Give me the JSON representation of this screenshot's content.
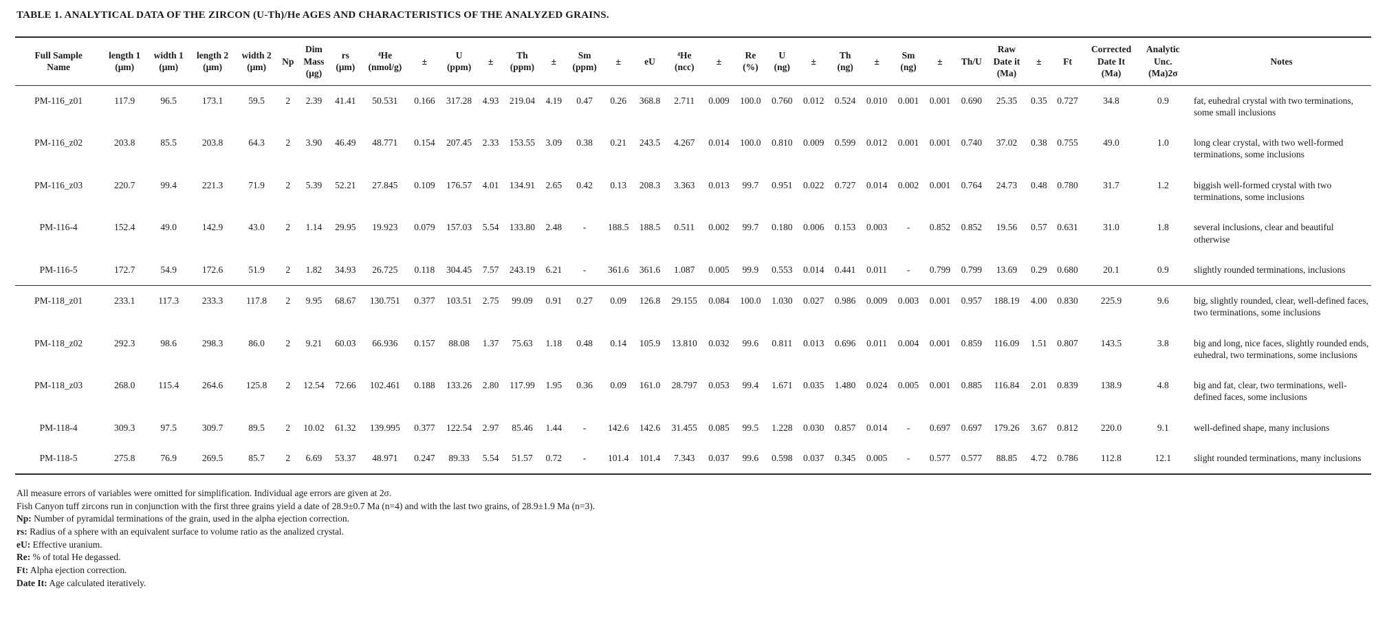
{
  "title": "TABLE 1. ANALYTICAL DATA OF THE ZIRCON (U-Th)/He AGES AND CHARACTERISTICS OF THE ANALYZED GRAINS.",
  "table": {
    "columns": [
      "Full Sample\nName",
      "length 1\n(μm)",
      "width 1\n(μm)",
      "length 2\n(μm)",
      "width 2\n(μm)",
      "Np",
      "Dim\nMass\n(μg)",
      "rs\n(μm)",
      "⁴He\n(nmol/g)",
      "±",
      "U\n(ppm)",
      "±",
      "Th\n(ppm)",
      "±",
      "Sm\n(ppm)",
      "±",
      "eU",
      "⁴He\n(ncc)",
      "±",
      "Re\n(%)",
      "U\n(ng)",
      "±",
      "Th\n(ng)",
      "±",
      "Sm\n(ng)",
      "±",
      "Th/U",
      "Raw\nDate it\n(Ma)",
      "±",
      "Ft",
      "Corrected\nDate It\n(Ma)",
      "Analytic\nUnc.\n(Ma)2σ",
      "Notes"
    ],
    "groups": [
      {
        "rows": [
          [
            "PM-116_z01",
            "117.9",
            "96.5",
            "173.1",
            "59.5",
            "2",
            "2.39",
            "41.41",
            "50.531",
            "0.166",
            "317.28",
            "4.93",
            "219.04",
            "4.19",
            "0.47",
            "0.26",
            "368.8",
            "2.711",
            "0.009",
            "100.0",
            "0.760",
            "0.012",
            "0.524",
            "0.010",
            "0.001",
            "0.001",
            "0.690",
            "25.35",
            "0.35",
            "0.727",
            "34.8",
            "0.9",
            "fat, euhedral crystal with two terminations, some small inclusions"
          ],
          [
            "PM-116_z02",
            "203.8",
            "85.5",
            "203.8",
            "64.3",
            "2",
            "3.90",
            "46.49",
            "48.771",
            "0.154",
            "207.45",
            "2.33",
            "153.55",
            "3.09",
            "0.38",
            "0.21",
            "243.5",
            "4.267",
            "0.014",
            "100.0",
            "0.810",
            "0.009",
            "0.599",
            "0.012",
            "0.001",
            "0.001",
            "0.740",
            "37.02",
            "0.38",
            "0.755",
            "49.0",
            "1.0",
            "long clear crystal, with two well-formed terminations, some inclusions"
          ],
          [
            "PM-116_z03",
            "220.7",
            "99.4",
            "221.3",
            "71.9",
            "2",
            "5.39",
            "52.21",
            "27.845",
            "0.109",
            "176.57",
            "4.01",
            "134.91",
            "2.65",
            "0.42",
            "0.13",
            "208.3",
            "3.363",
            "0.013",
            "99.7",
            "0.951",
            "0.022",
            "0.727",
            "0.014",
            "0.002",
            "0.001",
            "0.764",
            "24.73",
            "0.48",
            "0.780",
            "31.7",
            "1.2",
            "biggish well-formed crystal with two terminations, some inclusions"
          ],
          [
            "PM-116-4",
            "152.4",
            "49.0",
            "142.9",
            "43.0",
            "2",
            "1.14",
            "29.95",
            "19.923",
            "0.079",
            "157.03",
            "5.54",
            "133.80",
            "2.48",
            "-",
            "188.5",
            "188.5",
            "0.511",
            "0.002",
            "99.7",
            "0.180",
            "0.006",
            "0.153",
            "0.003",
            "-",
            "0.852",
            "0.852",
            "19.56",
            "0.57",
            "0.631",
            "31.0",
            "1.8",
            "several inclusions, clear and beautiful otherwise"
          ],
          [
            "PM-116-5",
            "172.7",
            "54.9",
            "172.6",
            "51.9",
            "2",
            "1.82",
            "34.93",
            "26.725",
            "0.118",
            "304.45",
            "7.57",
            "243.19",
            "6.21",
            "-",
            "361.6",
            "361.6",
            "1.087",
            "0.005",
            "99.9",
            "0.553",
            "0.014",
            "0.441",
            "0.011",
            "-",
            "0.799",
            "0.799",
            "13.69",
            "0.29",
            "0.680",
            "20.1",
            "0.9",
            "slightly rounded terminations, inclusions"
          ]
        ]
      },
      {
        "rows": [
          [
            "PM-118_z01",
            "233.1",
            "117.3",
            "233.3",
            "117.8",
            "2",
            "9.95",
            "68.67",
            "130.751",
            "0.377",
            "103.51",
            "2.75",
            "99.09",
            "0.91",
            "0.27",
            "0.09",
            "126.8",
            "29.155",
            "0.084",
            "100.0",
            "1.030",
            "0.027",
            "0.986",
            "0.009",
            "0.003",
            "0.001",
            "0.957",
            "188.19",
            "4.00",
            "0.830",
            "225.9",
            "9.6",
            "big, slightly rounded, clear, well-defined faces, two terminations, some inclusions"
          ],
          [
            "PM-118_z02",
            "292.3",
            "98.6",
            "298.3",
            "86.0",
            "2",
            "9.21",
            "60.03",
            "66.936",
            "0.157",
            "88.08",
            "1.37",
            "75.63",
            "1.18",
            "0.48",
            "0.14",
            "105.9",
            "13.810",
            "0.032",
            "99.6",
            "0.811",
            "0.013",
            "0.696",
            "0.011",
            "0.004",
            "0.001",
            "0.859",
            "116.09",
            "1.51",
            "0.807",
            "143.5",
            "3.8",
            "big and long, nice faces, slightly rounded ends, euhedral, two terminations, some inclusions"
          ],
          [
            "PM-118_z03",
            "268.0",
            "115.4",
            "264.6",
            "125.8",
            "2",
            "12.54",
            "72.66",
            "102.461",
            "0.188",
            "133.26",
            "2.80",
            "117.99",
            "1.95",
            "0.36",
            "0.09",
            "161.0",
            "28.797",
            "0.053",
            "99.4",
            "1.671",
            "0.035",
            "1.480",
            "0.024",
            "0.005",
            "0.001",
            "0.885",
            "116.84",
            "2.01",
            "0.839",
            "138.9",
            "4.8",
            "big and fat, clear, two terminations, well-defined faces, some inclusions"
          ],
          [
            "PM-118-4",
            "309.3",
            "97.5",
            "309.7",
            "89.5",
            "2",
            "10.02",
            "61.32",
            "139.995",
            "0.377",
            "122.54",
            "2.97",
            "85.46",
            "1.44",
            "-",
            "142.6",
            "142.6",
            "31.455",
            "0.085",
            "99.5",
            "1.228",
            "0.030",
            "0.857",
            "0.014",
            "-",
            "0.697",
            "0.697",
            "179.26",
            "3.67",
            "0.812",
            "220.0",
            "9.1",
            "well-defined shape, many inclusions"
          ],
          [
            "PM-118-5",
            "275.8",
            "76.9",
            "269.5",
            "85.7",
            "2",
            "6.69",
            "53.37",
            "48.971",
            "0.247",
            "89.33",
            "5.54",
            "51.57",
            "0.72",
            "-",
            "101.4",
            "101.4",
            "7.343",
            "0.037",
            "99.6",
            "0.598",
            "0.037",
            "0.345",
            "0.005",
            "-",
            "0.577",
            "0.577",
            "88.85",
            "4.72",
            "0.786",
            "112.8",
            "12.1",
            "slight rounded terminations, many inclusions"
          ]
        ]
      }
    ]
  },
  "footnotes": [
    {
      "term": "",
      "text": "All measure errors of variables were omitted for simplification. Individual age errors are given at 2σ."
    },
    {
      "term": "",
      "text": "Fish Canyon tuff zircons run in conjunction with the first three grains yield a date of 28.9±0.7 Ma (n=4) and with the last two grains, of 28.9±1.9 Ma (n=3)."
    },
    {
      "term": "Np:",
      "text": " Number of pyramidal terminations of the grain, used in the alpha ejection correction."
    },
    {
      "term": "rs:",
      "text": " Radius of a sphere with an equivalent surface to volume ratio as the analized crystal."
    },
    {
      "term": "eU:",
      "text": " Effective uranium."
    },
    {
      "term": "Re:",
      "text": " % of total He degassed."
    },
    {
      "term": "Ft:",
      "text": " Alpha ejection correction."
    },
    {
      "term": "Date It:",
      "text": " Age calculated iteratively."
    }
  ]
}
